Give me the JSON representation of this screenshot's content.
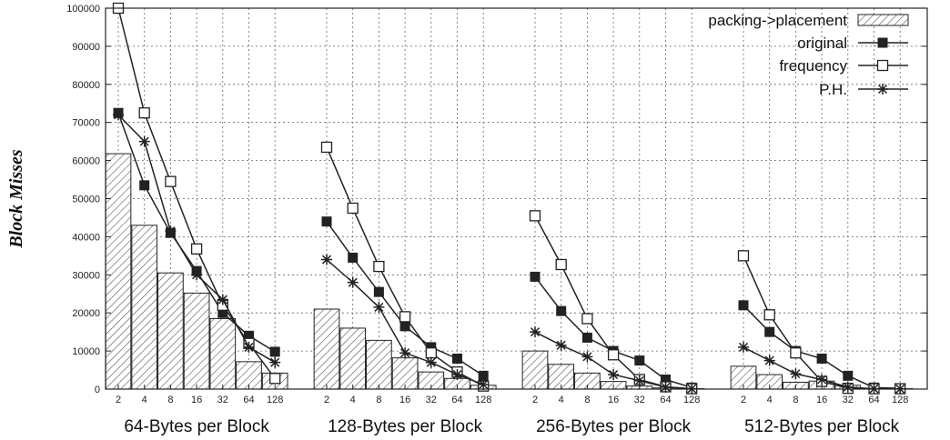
{
  "chart_data": {
    "type": "bar",
    "ylabel": "Block Misses",
    "xlabel": "",
    "ylim": [
      0,
      100000
    ],
    "yticks": [
      0,
      10000,
      20000,
      30000,
      40000,
      50000,
      60000,
      70000,
      80000,
      90000,
      100000
    ],
    "grid": true,
    "legend_position": "top-right",
    "groups": [
      {
        "label": "64-Bytes per Block",
        "categories": [
          "2",
          "4",
          "8",
          "16",
          "32",
          "64",
          "128"
        ],
        "series": [
          {
            "name": "packing->placement",
            "kind": "bar",
            "values": [
              61800,
              43000,
              30500,
              25200,
              18500,
              7200,
              4200
            ]
          },
          {
            "name": "original",
            "kind": "line",
            "values": [
              72500,
              53500,
              41000,
              31000,
              20000,
              14000,
              9800
            ]
          },
          {
            "name": "frequency",
            "kind": "line",
            "values": [
              100000,
              72500,
              54500,
              36800,
              22000,
              12000,
              2800
            ]
          },
          {
            "name": "P.H.",
            "kind": "line",
            "values": [
              72000,
              65000,
              41500,
              30000,
              23500,
              11000,
              7000
            ]
          }
        ]
      },
      {
        "label": "128-Bytes per Block",
        "categories": [
          "2",
          "4",
          "8",
          "16",
          "32",
          "64",
          "128"
        ],
        "series": [
          {
            "name": "packing->placement",
            "kind": "bar",
            "values": [
              21000,
              16000,
              12800,
              8200,
              4500,
              2800,
              1000
            ]
          },
          {
            "name": "original",
            "kind": "line",
            "values": [
              44000,
              34500,
              25500,
              16500,
              11000,
              8000,
              3500
            ]
          },
          {
            "name": "frequency",
            "kind": "line",
            "values": [
              63500,
              47500,
              32200,
              19000,
              9500,
              4500,
              800
            ]
          },
          {
            "name": "P.H.",
            "kind": "line",
            "values": [
              34000,
              28000,
              21500,
              9500,
              7000,
              3800,
              1200
            ]
          }
        ]
      },
      {
        "label": "256-Bytes per Block",
        "categories": [
          "2",
          "4",
          "8",
          "16",
          "32",
          "64",
          "128"
        ],
        "series": [
          {
            "name": "packing->placement",
            "kind": "bar",
            "values": [
              10000,
              6500,
              4200,
              2000,
              800,
              300,
              100
            ]
          },
          {
            "name": "original",
            "kind": "line",
            "values": [
              29500,
              20500,
              13500,
              10000,
              7500,
              2500,
              400
            ]
          },
          {
            "name": "frequency",
            "kind": "line",
            "values": [
              45500,
              32700,
              18500,
              9000,
              2500,
              600,
              100
            ]
          },
          {
            "name": "P.H.",
            "kind": "line",
            "values": [
              15000,
              11500,
              8500,
              3800,
              2200,
              500,
              100
            ]
          }
        ]
      },
      {
        "label": "512-Bytes per Block",
        "categories": [
          "2",
          "4",
          "8",
          "16",
          "32",
          "64",
          "128"
        ],
        "series": [
          {
            "name": "packing->placement",
            "kind": "bar",
            "values": [
              6000,
              3800,
              1800,
              2100,
              1000,
              200,
              100
            ]
          },
          {
            "name": "original",
            "kind": "line",
            "values": [
              22000,
              15000,
              10000,
              8000,
              3500,
              400,
              200
            ]
          },
          {
            "name": "frequency",
            "kind": "line",
            "values": [
              35000,
              19500,
              9500,
              2000,
              200,
              100,
              100
            ]
          },
          {
            "name": "P.H.",
            "kind": "line",
            "values": [
              11000,
              7500,
              4000,
              2500,
              500,
              100,
              50
            ]
          }
        ]
      }
    ],
    "legend": [
      {
        "name": "packing->placement",
        "marker": "hatched-bar"
      },
      {
        "name": "original",
        "marker": "filled-square"
      },
      {
        "name": "frequency",
        "marker": "open-square"
      },
      {
        "name": "P.H.",
        "marker": "asterisk"
      }
    ],
    "colors": {
      "line": "#222222",
      "bar_fill": "#ffffff",
      "hatch": "#555555",
      "axis": "#222222"
    }
  }
}
